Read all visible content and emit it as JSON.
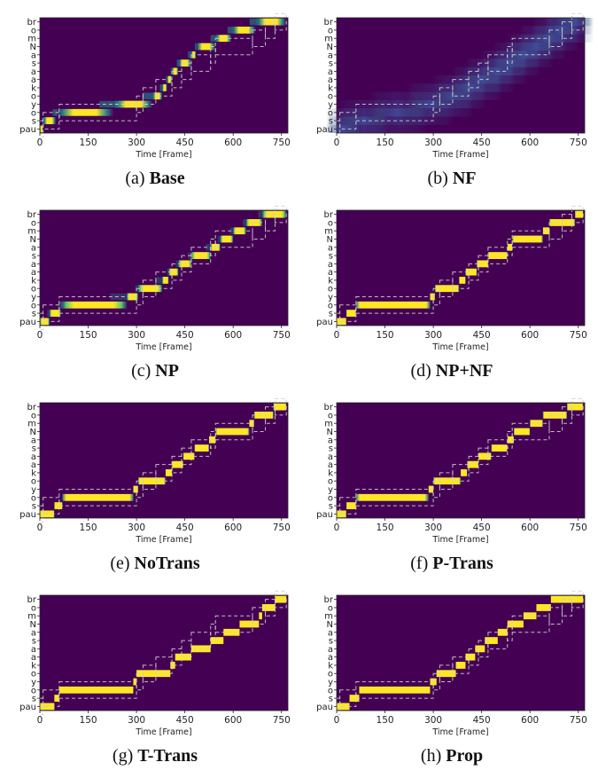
{
  "figure": {
    "panels": [
      {
        "id": "a",
        "letter": "(a)",
        "name": "Base",
        "style": "soft"
      },
      {
        "id": "b",
        "letter": "(b)",
        "name": "NF",
        "style": "blurry"
      },
      {
        "id": "c",
        "letter": "(c)",
        "name": "NP",
        "style": "medium"
      },
      {
        "id": "d",
        "letter": "(d)",
        "name": "NP+NF",
        "style": "sharp"
      },
      {
        "id": "e",
        "letter": "(e)",
        "name": "NoTrans",
        "style": "sharp"
      },
      {
        "id": "f",
        "letter": "(f)",
        "name": "P-Trans",
        "style": "sharp"
      },
      {
        "id": "g",
        "letter": "(g)",
        "name": "T-Trans",
        "style": "crisp"
      },
      {
        "id": "h",
        "letter": "(h)",
        "name": "Prop",
        "style": "crisp"
      }
    ]
  },
  "chart_data": {
    "type": "heatmap",
    "xlabel": "Time [Frame]",
    "xlim": [
      0,
      770
    ],
    "xticks": [
      0,
      150,
      300,
      450,
      600,
      750
    ],
    "ylabels": [
      "pau",
      "s",
      "o",
      "y",
      "o",
      "k",
      "a",
      "a",
      "s",
      "a",
      "N",
      "m",
      "o",
      "br"
    ],
    "colors": {
      "background": "#440154",
      "high": "#fde725",
      "mid": "#21918c",
      "low": "#3b528b",
      "dashed": "#cfcfcf"
    },
    "reference_path": [
      {
        "label": "pau",
        "start": 0,
        "end": 10
      },
      {
        "label": "s",
        "start": 10,
        "end": 60
      },
      {
        "label": "o",
        "start": 60,
        "end": 300
      },
      {
        "label": "y",
        "start": 300,
        "end": 320
      },
      {
        "label": "o",
        "start": 320,
        "end": 360
      },
      {
        "label": "k",
        "start": 360,
        "end": 410
      },
      {
        "label": "a",
        "start": 410,
        "end": 440
      },
      {
        "label": "a",
        "start": 440,
        "end": 470
      },
      {
        "label": "s",
        "start": 470,
        "end": 530
      },
      {
        "label": "a",
        "start": 530,
        "end": 545
      },
      {
        "label": "N",
        "start": 545,
        "end": 660
      },
      {
        "label": "m",
        "start": 660,
        "end": 700
      },
      {
        "label": "o",
        "start": 700,
        "end": 730
      },
      {
        "label": "br",
        "start": 730,
        "end": 765
      }
    ],
    "alignments": {
      "a": [
        {
          "row": 0,
          "start": 0,
          "end": 10
        },
        {
          "row": 1,
          "start": 10,
          "end": 50
        },
        {
          "row": 2,
          "start": 50,
          "end": 230
        },
        {
          "row": 3,
          "start": 230,
          "end": 350
        },
        {
          "row": 4,
          "start": 350,
          "end": 380
        },
        {
          "row": 5,
          "start": 380,
          "end": 395
        },
        {
          "row": 6,
          "start": 395,
          "end": 410
        },
        {
          "row": 7,
          "start": 410,
          "end": 430
        },
        {
          "row": 8,
          "start": 430,
          "end": 470
        },
        {
          "row": 9,
          "start": 470,
          "end": 485
        },
        {
          "row": 10,
          "start": 485,
          "end": 545
        },
        {
          "row": 11,
          "start": 545,
          "end": 595
        },
        {
          "row": 12,
          "start": 595,
          "end": 670
        },
        {
          "row": 13,
          "start": 670,
          "end": 765
        }
      ],
      "b": [
        {
          "row": 0,
          "start": 0,
          "end": 40
        },
        {
          "row": 1,
          "start": 40,
          "end": 130
        },
        {
          "row": 2,
          "start": 130,
          "end": 250
        },
        {
          "row": 3,
          "start": 250,
          "end": 330
        },
        {
          "row": 4,
          "start": 330,
          "end": 390
        },
        {
          "row": 5,
          "start": 390,
          "end": 430
        },
        {
          "row": 6,
          "start": 430,
          "end": 480
        },
        {
          "row": 7,
          "start": 480,
          "end": 520
        },
        {
          "row": 8,
          "start": 520,
          "end": 560
        },
        {
          "row": 9,
          "start": 560,
          "end": 600
        },
        {
          "row": 10,
          "start": 600,
          "end": 640
        },
        {
          "row": 11,
          "start": 640,
          "end": 680
        },
        {
          "row": 12,
          "start": 680,
          "end": 720
        },
        {
          "row": 13,
          "start": 720,
          "end": 765
        }
      ],
      "c": [
        {
          "row": 0,
          "start": 0,
          "end": 30
        },
        {
          "row": 1,
          "start": 30,
          "end": 65
        },
        {
          "row": 2,
          "start": 65,
          "end": 270
        },
        {
          "row": 3,
          "start": 270,
          "end": 305
        },
        {
          "row": 4,
          "start": 305,
          "end": 380
        },
        {
          "row": 5,
          "start": 380,
          "end": 400
        },
        {
          "row": 6,
          "start": 400,
          "end": 430
        },
        {
          "row": 7,
          "start": 430,
          "end": 470
        },
        {
          "row": 8,
          "start": 470,
          "end": 530
        },
        {
          "row": 9,
          "start": 530,
          "end": 560
        },
        {
          "row": 10,
          "start": 560,
          "end": 600
        },
        {
          "row": 11,
          "start": 600,
          "end": 640
        },
        {
          "row": 12,
          "start": 640,
          "end": 690
        },
        {
          "row": 13,
          "start": 690,
          "end": 765
        }
      ],
      "d": [
        {
          "row": 0,
          "start": 0,
          "end": 30
        },
        {
          "row": 1,
          "start": 30,
          "end": 60
        },
        {
          "row": 2,
          "start": 60,
          "end": 290
        },
        {
          "row": 3,
          "start": 290,
          "end": 305
        },
        {
          "row": 4,
          "start": 305,
          "end": 380
        },
        {
          "row": 5,
          "start": 380,
          "end": 400
        },
        {
          "row": 6,
          "start": 400,
          "end": 435
        },
        {
          "row": 7,
          "start": 435,
          "end": 470
        },
        {
          "row": 8,
          "start": 470,
          "end": 530
        },
        {
          "row": 9,
          "start": 530,
          "end": 545
        },
        {
          "row": 10,
          "start": 545,
          "end": 640
        },
        {
          "row": 11,
          "start": 640,
          "end": 660
        },
        {
          "row": 12,
          "start": 660,
          "end": 740
        },
        {
          "row": 13,
          "start": 740,
          "end": 765
        }
      ],
      "e": [
        {
          "row": 0,
          "start": 0,
          "end": 45
        },
        {
          "row": 1,
          "start": 45,
          "end": 70
        },
        {
          "row": 2,
          "start": 70,
          "end": 290
        },
        {
          "row": 3,
          "start": 290,
          "end": 305
        },
        {
          "row": 4,
          "start": 305,
          "end": 390
        },
        {
          "row": 5,
          "start": 390,
          "end": 410
        },
        {
          "row": 6,
          "start": 410,
          "end": 445
        },
        {
          "row": 7,
          "start": 445,
          "end": 480
        },
        {
          "row": 8,
          "start": 480,
          "end": 525
        },
        {
          "row": 9,
          "start": 525,
          "end": 545
        },
        {
          "row": 10,
          "start": 545,
          "end": 650
        },
        {
          "row": 11,
          "start": 650,
          "end": 665
        },
        {
          "row": 12,
          "start": 665,
          "end": 725
        },
        {
          "row": 13,
          "start": 725,
          "end": 765
        }
      ],
      "f": [
        {
          "row": 0,
          "start": 0,
          "end": 30
        },
        {
          "row": 1,
          "start": 30,
          "end": 60
        },
        {
          "row": 2,
          "start": 60,
          "end": 285
        },
        {
          "row": 3,
          "start": 285,
          "end": 300
        },
        {
          "row": 4,
          "start": 300,
          "end": 385
        },
        {
          "row": 5,
          "start": 385,
          "end": 405
        },
        {
          "row": 6,
          "start": 405,
          "end": 440
        },
        {
          "row": 7,
          "start": 440,
          "end": 480
        },
        {
          "row": 8,
          "start": 480,
          "end": 530
        },
        {
          "row": 9,
          "start": 530,
          "end": 550
        },
        {
          "row": 10,
          "start": 550,
          "end": 600
        },
        {
          "row": 11,
          "start": 600,
          "end": 640
        },
        {
          "row": 12,
          "start": 640,
          "end": 715
        },
        {
          "row": 13,
          "start": 715,
          "end": 765
        }
      ],
      "g": [
        {
          "row": 0,
          "start": 0,
          "end": 45
        },
        {
          "row": 1,
          "start": 45,
          "end": 60
        },
        {
          "row": 2,
          "start": 60,
          "end": 290
        },
        {
          "row": 3,
          "start": 290,
          "end": 300
        },
        {
          "row": 4,
          "start": 300,
          "end": 405
        },
        {
          "row": 5,
          "start": 405,
          "end": 420
        },
        {
          "row": 6,
          "start": 420,
          "end": 470
        },
        {
          "row": 7,
          "start": 470,
          "end": 530
        },
        {
          "row": 8,
          "start": 530,
          "end": 570
        },
        {
          "row": 9,
          "start": 570,
          "end": 620
        },
        {
          "row": 10,
          "start": 620,
          "end": 680
        },
        {
          "row": 11,
          "start": 680,
          "end": 690
        },
        {
          "row": 12,
          "start": 690,
          "end": 730
        },
        {
          "row": 13,
          "start": 730,
          "end": 765
        }
      ],
      "h": [
        {
          "row": 0,
          "start": 0,
          "end": 40
        },
        {
          "row": 1,
          "start": 40,
          "end": 70
        },
        {
          "row": 2,
          "start": 70,
          "end": 290
        },
        {
          "row": 3,
          "start": 290,
          "end": 310
        },
        {
          "row": 4,
          "start": 310,
          "end": 370
        },
        {
          "row": 5,
          "start": 370,
          "end": 400
        },
        {
          "row": 6,
          "start": 400,
          "end": 430
        },
        {
          "row": 7,
          "start": 430,
          "end": 460
        },
        {
          "row": 8,
          "start": 460,
          "end": 500
        },
        {
          "row": 9,
          "start": 500,
          "end": 530
        },
        {
          "row": 10,
          "start": 530,
          "end": 580
        },
        {
          "row": 11,
          "start": 580,
          "end": 620
        },
        {
          "row": 12,
          "start": 620,
          "end": 665
        },
        {
          "row": 13,
          "start": 665,
          "end": 765
        }
      ]
    }
  }
}
